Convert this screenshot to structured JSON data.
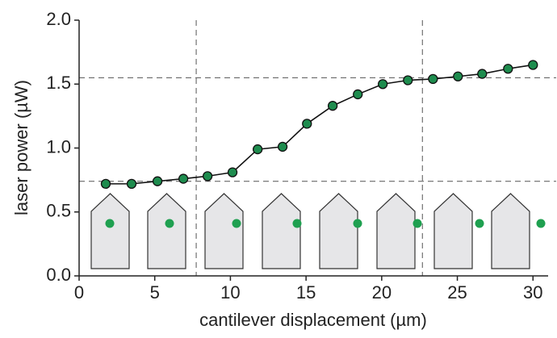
{
  "chart_data": {
    "type": "line",
    "x_label": "cantilever displacement (µm)",
    "y_label": "laser power (µW)",
    "x": [
      1.76,
      3.47,
      5.18,
      6.89,
      8.49,
      10.14,
      11.8,
      13.45,
      15.06,
      16.76,
      18.42,
      20.07,
      21.73,
      23.39,
      25.04,
      26.64,
      28.35,
      30.0
    ],
    "series": [
      {
        "color": "#1e8c4e",
        "values": [
          0.72,
          0.72,
          0.74,
          0.76,
          0.78,
          0.81,
          0.99,
          1.01,
          1.19,
          1.33,
          1.42,
          1.5,
          1.53,
          1.54,
          1.56,
          1.58,
          1.62,
          1.65
        ]
      }
    ],
    "reference_x": [
      7.74,
      22.69
    ],
    "reference_y": [
      0.74,
      1.55
    ],
    "xlim": [
      0,
      31
    ],
    "ylim": [
      0,
      2.0
    ],
    "xticks": [
      0,
      5,
      10,
      15,
      20,
      25,
      30
    ],
    "yticks": [
      {
        "value": 0,
        "label": "0.0"
      },
      {
        "value": 0.5,
        "label": "0.5"
      },
      {
        "value": 1,
        "label": "1.0"
      },
      {
        "value": 1.5,
        "label": "1.5"
      },
      {
        "value": 2,
        "label": "2.0"
      }
    ]
  }
}
